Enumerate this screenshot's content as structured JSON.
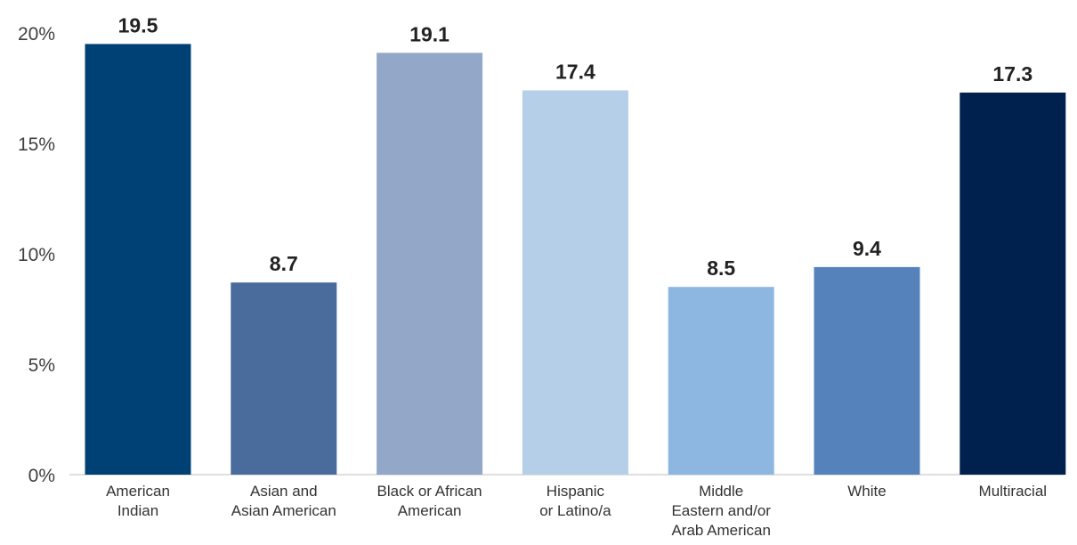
{
  "chart_data": {
    "type": "bar",
    "categories": [
      [
        "American",
        "Indian"
      ],
      [
        "Asian and",
        "Asian American"
      ],
      [
        "Black or African",
        "American"
      ],
      [
        "Hispanic",
        "or Latino/a"
      ],
      [
        "Middle",
        "Eastern and/or",
        "Arab American"
      ],
      [
        "White"
      ],
      [
        "Multiracial"
      ]
    ],
    "values": [
      19.5,
      8.7,
      19.1,
      17.4,
      8.5,
      9.4,
      17.3
    ],
    "value_labels": [
      "19.5",
      "8.7",
      "19.1",
      "17.4",
      "8.5",
      "9.4",
      "17.3"
    ],
    "colors": [
      "#004175",
      "#4a6c9c",
      "#93a8c9",
      "#b5cfe9",
      "#8db6e0",
      "#5682bb",
      "#00204d"
    ],
    "ylim": [
      0,
      20
    ],
    "yticks": [
      0,
      5,
      10,
      15,
      20
    ],
    "ytick_labels": [
      "0%",
      "5%",
      "10%",
      "15%",
      "20%"
    ],
    "title": "",
    "xlabel": "",
    "ylabel": "",
    "grid": false,
    "legend": "none"
  }
}
